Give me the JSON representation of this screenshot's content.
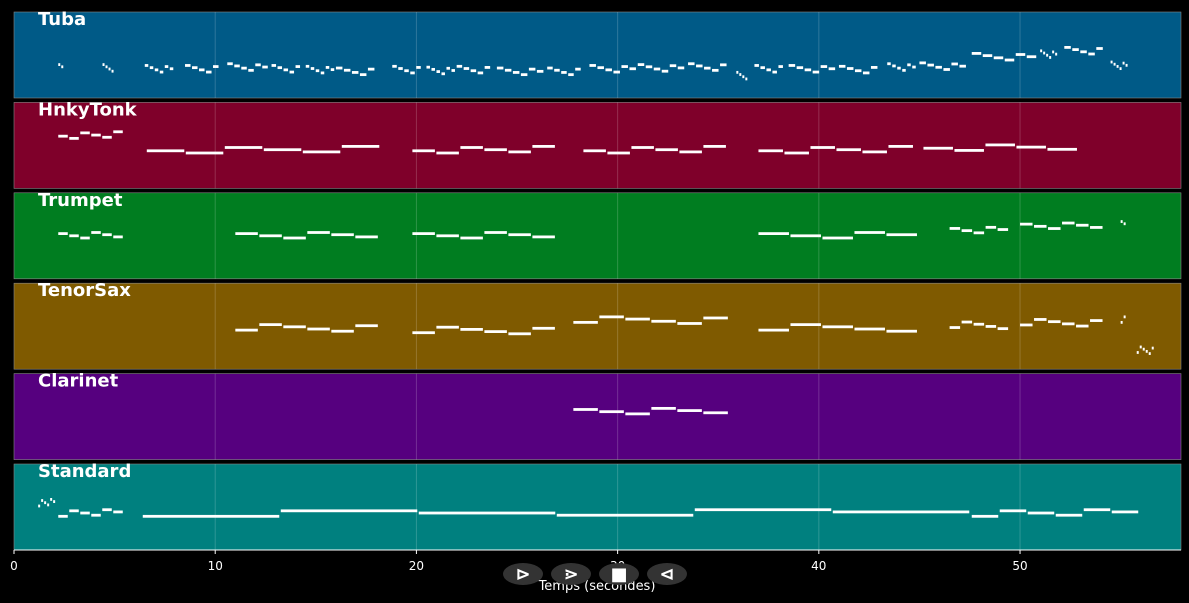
{
  "chart_data": {
    "type": "piano-roll",
    "xlabel": "Temps (secondes)",
    "xlim": [
      0,
      58
    ],
    "xticks": [
      0,
      10,
      20,
      30,
      40,
      50
    ],
    "grid": true,
    "tracks": [
      {
        "name": "Tuba",
        "color": "#005a87",
        "notes": [
          [
            2.2,
            2.5,
            0.35
          ],
          [
            4.4,
            5.0,
            0.35
          ],
          [
            6.5,
            8.0,
            0.34
          ],
          [
            8.5,
            10.5,
            0.34
          ],
          [
            10.6,
            12.8,
            0.36
          ],
          [
            12.8,
            14.5,
            0.34
          ],
          [
            14.5,
            16.0,
            0.33
          ],
          [
            16.0,
            18.3,
            0.31
          ],
          [
            18.8,
            20.5,
            0.33
          ],
          [
            20.5,
            22.0,
            0.32
          ],
          [
            22.0,
            24.0,
            0.33
          ],
          [
            24.0,
            26.5,
            0.31
          ],
          [
            26.5,
            28.5,
            0.31
          ],
          [
            28.6,
            31.0,
            0.34
          ],
          [
            31.0,
            33.5,
            0.35
          ],
          [
            33.5,
            35.8,
            0.36
          ],
          [
            35.9,
            36.5,
            0.26
          ],
          [
            36.8,
            38.5,
            0.34
          ],
          [
            38.5,
            41.0,
            0.34
          ],
          [
            41.0,
            43.3,
            0.33
          ],
          [
            43.4,
            45.0,
            0.36
          ],
          [
            45.0,
            47.5,
            0.37
          ],
          [
            47.6,
            51.0,
            0.48
          ],
          [
            51.0,
            51.9,
            0.51
          ],
          [
            52.2,
            54.5,
            0.55
          ],
          [
            54.5,
            55.4,
            0.38
          ]
        ]
      },
      {
        "name": "HnkyTonk",
        "color": "#7f002a",
        "notes": [
          [
            2.2,
            5.5,
            0.62
          ],
          [
            6.6,
            18.3,
            0.45
          ],
          [
            19.8,
            27.0,
            0.45
          ],
          [
            28.3,
            35.6,
            0.45
          ],
          [
            37.0,
            44.8,
            0.45
          ],
          [
            45.2,
            54.4,
            0.48
          ]
        ]
      },
      {
        "name": "Trumpet",
        "color": "#007d20",
        "notes": [
          [
            2.2,
            5.5,
            0.5
          ],
          [
            11.0,
            18.3,
            0.5
          ],
          [
            19.8,
            27.0,
            0.5
          ],
          [
            37.0,
            46.5,
            0.5
          ],
          [
            46.5,
            50.0,
            0.56
          ],
          [
            50.0,
            54.2,
            0.61
          ],
          [
            55.0,
            55.4,
            0.64
          ]
        ]
      },
      {
        "name": "TenorSax",
        "color": "#7f5a00",
        "notes": [
          [
            11.0,
            18.3,
            0.48
          ],
          [
            19.8,
            27.0,
            0.45
          ],
          [
            27.8,
            35.6,
            0.57
          ],
          [
            37.0,
            46.5,
            0.48
          ],
          [
            46.5,
            50.0,
            0.51
          ],
          [
            50.0,
            54.2,
            0.54
          ],
          [
            55.0,
            55.4,
            0.57
          ],
          [
            55.8,
            56.8,
            0.22
          ]
        ]
      },
      {
        "name": "Clarinet",
        "color": "#56007f",
        "notes": [
          [
            27.8,
            35.6,
            0.57
          ]
        ]
      },
      {
        "name": "Standard",
        "color": "#00807f",
        "notes": [
          [
            1.2,
            2.2,
            0.55
          ],
          [
            2.2,
            5.5,
            0.43
          ],
          [
            6.4,
            47.6,
            0.43
          ],
          [
            47.6,
            56.0,
            0.43
          ]
        ]
      }
    ]
  },
  "controls": [
    {
      "name": "rewind",
      "glyph": "⊳"
    },
    {
      "name": "forward",
      "glyph": "⋗"
    },
    {
      "name": "stop",
      "glyph": "■"
    },
    {
      "name": "back",
      "glyph": "⊲"
    }
  ],
  "colors": {
    "background": "#000000",
    "grid": "#ffffff",
    "note": "#ffffff"
  }
}
